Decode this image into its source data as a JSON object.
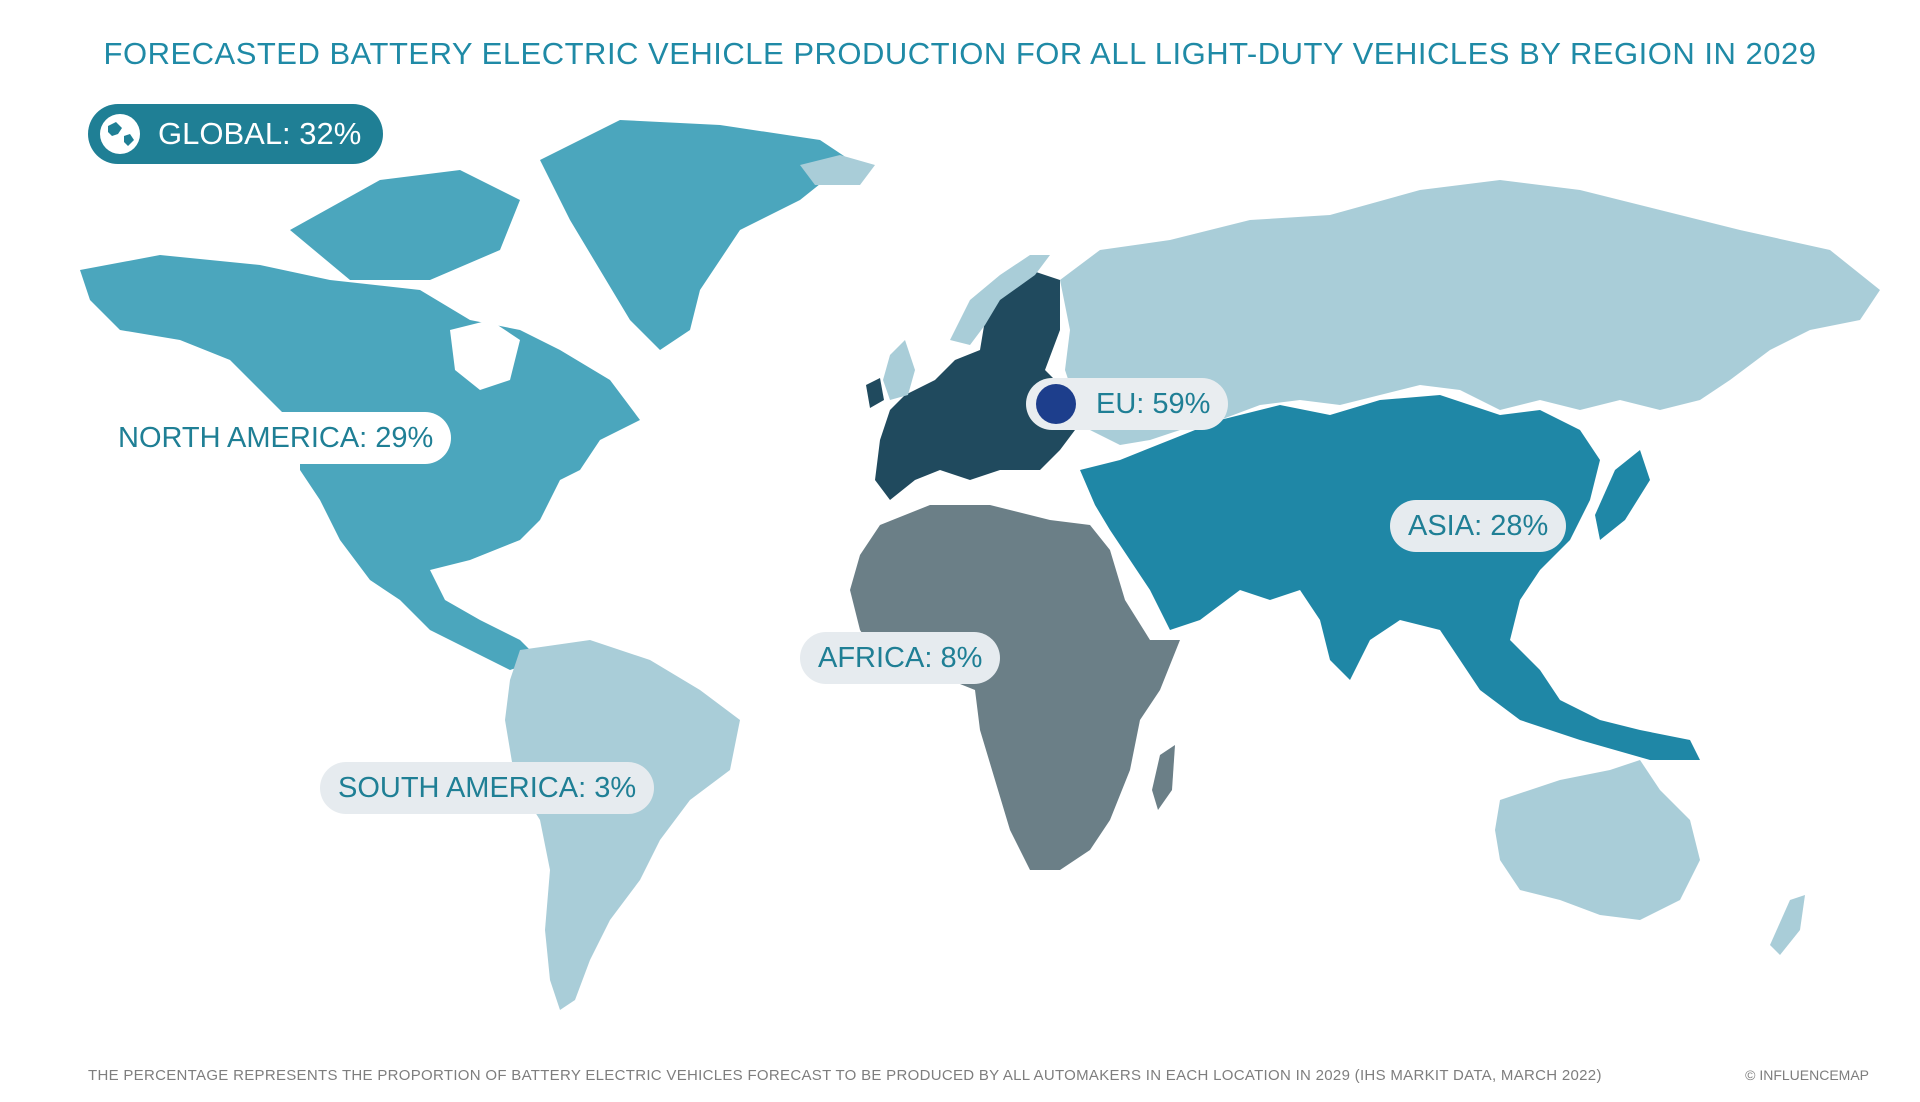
{
  "title": "FORECASTED BATTERY ELECTRIC VEHICLE PRODUCTION FOR ALL LIGHT-DUTY VEHICLES BY REGION IN 2029",
  "global_label": "GLOBAL: 32%",
  "regions": [
    {
      "id": "north-america",
      "label": "NORTH AMERICA: 29%",
      "value": 29,
      "color": "#4ba6bd"
    },
    {
      "id": "south-america",
      "label": "SOUTH AMERICA: 3%",
      "value": 3,
      "color": "#a9cdd8"
    },
    {
      "id": "eu",
      "label": "EU: 59%",
      "value": 59,
      "color": "#204a5e"
    },
    {
      "id": "africa",
      "label": "AFRICA: 8%",
      "value": 8,
      "color": "#6b7f87"
    },
    {
      "id": "asia",
      "label": "ASIA: 28%",
      "value": 28,
      "color": "#1f87a6"
    },
    {
      "id": "other",
      "label": "",
      "value": null,
      "color": "#a9cdd8"
    }
  ],
  "footnote": "THE PERCENTAGE REPRESENTS THE PROPORTION OF BATTERY ELECTRIC VEHICLES FORECAST TO BE PRODUCED BY ALL AUTOMAKERS IN EACH LOCATION IN 2029 (IHS MARKIT DATA, MARCH 2022)",
  "copyright": "© INFLUENCEMAP",
  "icons": {
    "global": "globe-icon",
    "eu": "eu-flag-icon"
  }
}
